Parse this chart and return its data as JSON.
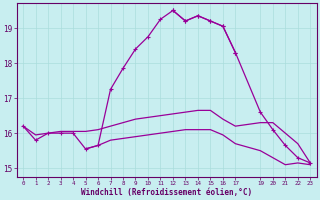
{
  "xlabel": "Windchill (Refroidissement éolien,°C)",
  "bg_color": "#c8eef0",
  "line_color": "#990099",
  "grid_color": "#aadddd",
  "text_color": "#660066",
  "xlim": [
    -0.5,
    23.5
  ],
  "ylim": [
    14.75,
    19.7
  ],
  "xticks": [
    0,
    1,
    2,
    3,
    4,
    5,
    6,
    7,
    8,
    9,
    10,
    11,
    12,
    13,
    14,
    15,
    16,
    17,
    19,
    20,
    21,
    22,
    23
  ],
  "yticks": [
    15,
    16,
    17,
    18,
    19
  ],
  "series": {
    "line1": {
      "x": [
        0,
        1,
        2,
        3,
        4,
        5,
        6,
        7,
        8,
        9,
        10,
        11,
        12,
        13,
        14,
        15,
        16,
        17
      ],
      "y": [
        16.2,
        15.8,
        16.0,
        16.0,
        16.0,
        15.55,
        15.65,
        17.25,
        17.85,
        18.4,
        18.75,
        19.25,
        19.5,
        19.2,
        19.35,
        19.2,
        19.05,
        18.3
      ]
    },
    "line2": {
      "x": [
        12,
        13,
        14,
        15,
        16,
        17,
        19,
        20,
        21,
        22,
        23
      ],
      "y": [
        19.5,
        19.2,
        19.35,
        19.2,
        19.05,
        18.3,
        16.6,
        16.1,
        15.65,
        15.3,
        15.15
      ]
    },
    "line3": {
      "x": [
        0,
        1,
        2,
        3,
        4,
        5,
        6,
        7,
        8,
        9,
        10,
        11,
        12,
        13,
        14,
        15,
        16,
        17,
        19,
        20,
        21,
        22,
        23
      ],
      "y": [
        16.2,
        15.95,
        16.0,
        16.05,
        16.05,
        16.05,
        16.1,
        16.2,
        16.3,
        16.4,
        16.45,
        16.5,
        16.55,
        16.6,
        16.65,
        16.65,
        16.4,
        16.2,
        16.3,
        16.3,
        16.0,
        15.7,
        15.15
      ]
    },
    "line4": {
      "x": [
        5,
        6,
        7,
        8,
        9,
        10,
        11,
        12,
        13,
        14,
        15,
        16,
        17,
        19,
        20,
        21,
        22,
        23
      ],
      "y": [
        15.55,
        15.65,
        15.8,
        15.85,
        15.9,
        15.95,
        16.0,
        16.05,
        16.1,
        16.1,
        16.1,
        15.95,
        15.7,
        15.5,
        15.3,
        15.1,
        15.15,
        15.1
      ]
    }
  }
}
